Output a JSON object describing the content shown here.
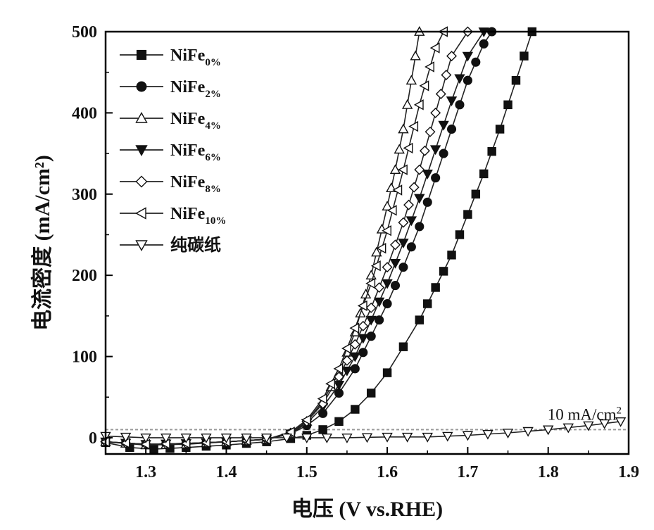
{
  "chart_data": {
    "type": "line",
    "xlabel": "电压 (V vs.RHE)",
    "ylabel": "电流密度 (mA/cm²)",
    "xlim": [
      1.25,
      1.9
    ],
    "ylim": [
      -20,
      500
    ],
    "x_ticks": [
      "1.3",
      "1.4",
      "1.5",
      "1.6",
      "1.7",
      "1.8",
      "1.9"
    ],
    "y_ticks": [
      "0",
      "100",
      "200",
      "300",
      "400",
      "500"
    ],
    "grid": false,
    "legend_position": "top-left",
    "annotation": {
      "label": "10 mA/cm²",
      "y": 10
    },
    "series": [
      {
        "name": "NiFe0%",
        "base": "NiFe",
        "sub": "0%",
        "marker": "square",
        "filled": true,
        "points": [
          [
            1.25,
            -6
          ],
          [
            1.28,
            -12
          ],
          [
            1.31,
            -14
          ],
          [
            1.35,
            -12
          ],
          [
            1.4,
            -9
          ],
          [
            1.45,
            -5
          ],
          [
            1.48,
            -1
          ],
          [
            1.5,
            3
          ],
          [
            1.52,
            10
          ],
          [
            1.54,
            20
          ],
          [
            1.56,
            35
          ],
          [
            1.58,
            55
          ],
          [
            1.6,
            80
          ],
          [
            1.62,
            112
          ],
          [
            1.64,
            145
          ],
          [
            1.66,
            185
          ],
          [
            1.68,
            225
          ],
          [
            1.7,
            275
          ],
          [
            1.72,
            325
          ],
          [
            1.74,
            380
          ],
          [
            1.76,
            440
          ],
          [
            1.78,
            500
          ]
        ]
      },
      {
        "name": "NiFe2%",
        "base": "NiFe",
        "sub": "2%",
        "marker": "circle",
        "filled": true,
        "points": [
          [
            1.25,
            -5
          ],
          [
            1.3,
            -8
          ],
          [
            1.35,
            -7
          ],
          [
            1.4,
            -5
          ],
          [
            1.45,
            -2
          ],
          [
            1.48,
            5
          ],
          [
            1.5,
            15
          ],
          [
            1.52,
            30
          ],
          [
            1.54,
            55
          ],
          [
            1.56,
            85
          ],
          [
            1.58,
            125
          ],
          [
            1.6,
            165
          ],
          [
            1.62,
            210
          ],
          [
            1.64,
            260
          ],
          [
            1.66,
            320
          ],
          [
            1.68,
            380
          ],
          [
            1.7,
            440
          ],
          [
            1.72,
            485
          ],
          [
            1.73,
            500
          ]
        ]
      },
      {
        "name": "NiFe4%",
        "base": "NiFe",
        "sub": "4%",
        "marker": "triangle-up",
        "filled": false,
        "points": [
          [
            1.25,
            -5
          ],
          [
            1.3,
            -9
          ],
          [
            1.35,
            -8
          ],
          [
            1.4,
            -5
          ],
          [
            1.45,
            -2
          ],
          [
            1.48,
            5
          ],
          [
            1.5,
            20
          ],
          [
            1.52,
            45
          ],
          [
            1.54,
            80
          ],
          [
            1.56,
            130
          ],
          [
            1.58,
            200
          ],
          [
            1.6,
            285
          ],
          [
            1.61,
            330
          ],
          [
            1.62,
            380
          ],
          [
            1.63,
            440
          ],
          [
            1.64,
            500
          ]
        ]
      },
      {
        "name": "NiFe6%",
        "base": "NiFe",
        "sub": "6%",
        "marker": "triangle-down",
        "filled": true,
        "points": [
          [
            1.25,
            -5
          ],
          [
            1.3,
            -8
          ],
          [
            1.35,
            -7
          ],
          [
            1.4,
            -5
          ],
          [
            1.45,
            -2
          ],
          [
            1.48,
            5
          ],
          [
            1.5,
            18
          ],
          [
            1.52,
            38
          ],
          [
            1.54,
            65
          ],
          [
            1.56,
            100
          ],
          [
            1.58,
            145
          ],
          [
            1.6,
            190
          ],
          [
            1.62,
            240
          ],
          [
            1.64,
            295
          ],
          [
            1.66,
            355
          ],
          [
            1.68,
            415
          ],
          [
            1.7,
            470
          ],
          [
            1.72,
            500
          ]
        ]
      },
      {
        "name": "NiFe8%",
        "base": "NiFe",
        "sub": "8%",
        "marker": "diamond",
        "filled": false,
        "points": [
          [
            1.25,
            -5
          ],
          [
            1.3,
            -8
          ],
          [
            1.35,
            -7
          ],
          [
            1.4,
            -5
          ],
          [
            1.45,
            -2
          ],
          [
            1.48,
            6
          ],
          [
            1.5,
            20
          ],
          [
            1.52,
            42
          ],
          [
            1.54,
            75
          ],
          [
            1.56,
            115
          ],
          [
            1.58,
            160
          ],
          [
            1.6,
            210
          ],
          [
            1.62,
            265
          ],
          [
            1.64,
            330
          ],
          [
            1.66,
            400
          ],
          [
            1.68,
            470
          ],
          [
            1.7,
            500
          ]
        ]
      },
      {
        "name": "NiFe10%",
        "base": "NiFe",
        "sub": "10%",
        "marker": "triangle-left",
        "filled": false,
        "points": [
          [
            1.25,
            -5
          ],
          [
            1.3,
            -8
          ],
          [
            1.35,
            -7
          ],
          [
            1.4,
            -5
          ],
          [
            1.45,
            -2
          ],
          [
            1.48,
            7
          ],
          [
            1.5,
            22
          ],
          [
            1.52,
            48
          ],
          [
            1.54,
            85
          ],
          [
            1.56,
            135
          ],
          [
            1.58,
            190
          ],
          [
            1.6,
            255
          ],
          [
            1.62,
            330
          ],
          [
            1.64,
            410
          ],
          [
            1.66,
            480
          ],
          [
            1.67,
            500
          ]
        ]
      },
      {
        "name": "纯碳纸",
        "base": "纯碳纸",
        "sub": "",
        "marker": "triangle-down",
        "filled": false,
        "points": [
          [
            1.25,
            2
          ],
          [
            1.3,
            0
          ],
          [
            1.35,
            0
          ],
          [
            1.4,
            0
          ],
          [
            1.45,
            0
          ],
          [
            1.5,
            0
          ],
          [
            1.55,
            0
          ],
          [
            1.6,
            1
          ],
          [
            1.65,
            1
          ],
          [
            1.7,
            3
          ],
          [
            1.75,
            6
          ],
          [
            1.8,
            10
          ],
          [
            1.85,
            15
          ],
          [
            1.89,
            20
          ]
        ]
      }
    ]
  }
}
